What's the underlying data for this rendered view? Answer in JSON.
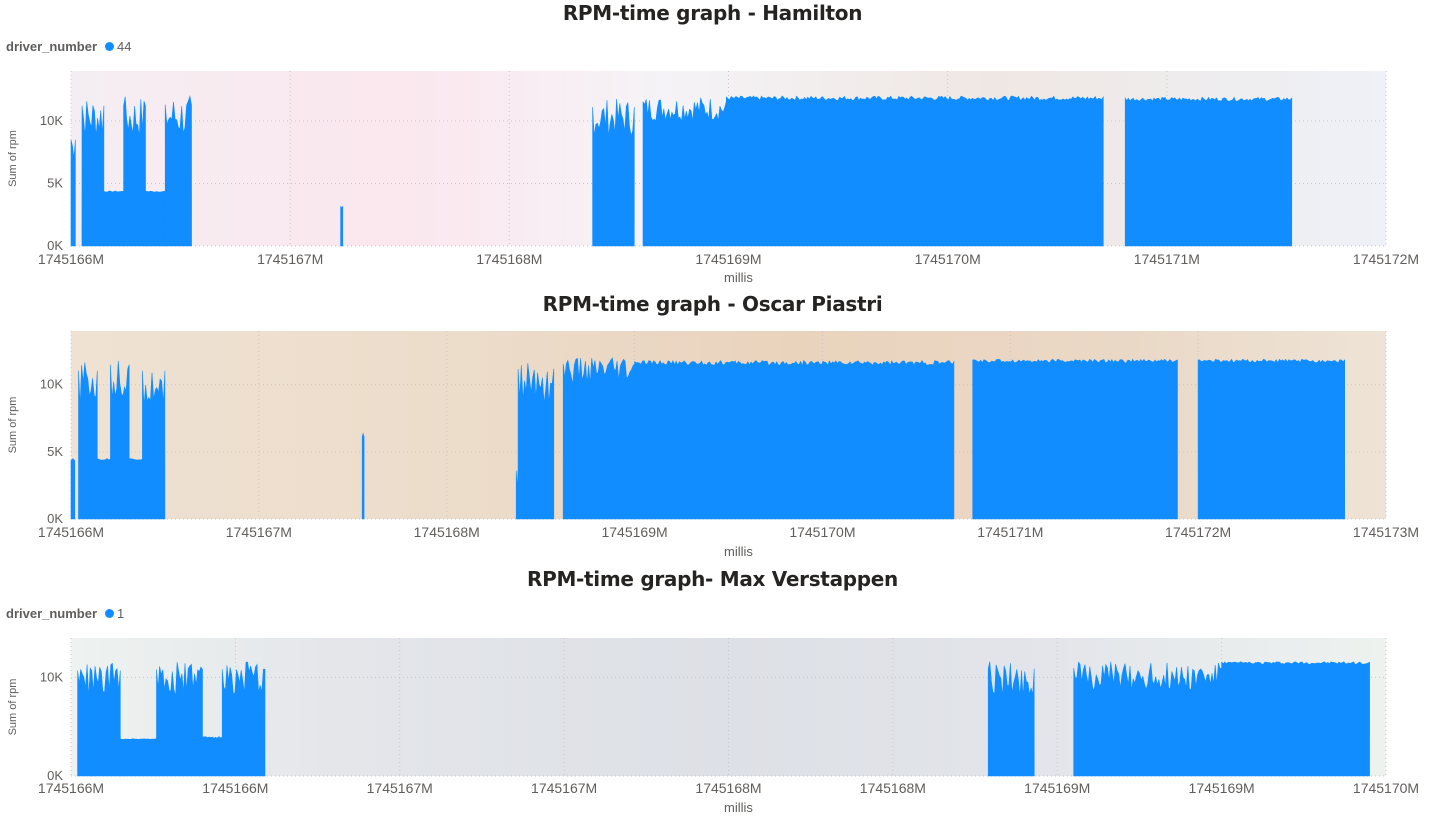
{
  "colors": {
    "series": "#118dff",
    "text": "#252423",
    "axis_text": "#605e5c",
    "grid": "#c8c6c4"
  },
  "charts": [
    {
      "title": "RPM-time graph - Hamilton",
      "legend": {
        "title": "driver_number",
        "items": [
          {
            "label": "44",
            "color": "#118dff"
          }
        ]
      },
      "background": "blurred photo of Hamilton (pink/red/white tones)",
      "xlabel": "millis",
      "ylabel": "Sum of rpm",
      "xticks": [
        "1745166M",
        "1745167M",
        "1745168M",
        "1745169M",
        "1745170M",
        "1745171M",
        "1745172M"
      ],
      "yticks": [
        "0K",
        "5K",
        "10K"
      ]
    },
    {
      "title": "RPM-time graph - Oscar Piastri",
      "legend": null,
      "background": "blurred photo of Oscar Piastri in orange McLaren suit",
      "xlabel": "millis",
      "ylabel": "Sum of rpm",
      "xticks": [
        "1745166M",
        "1745167M",
        "1745168M",
        "1745169M",
        "1745170M",
        "1745171M",
        "1745172M",
        "1745173M"
      ],
      "yticks": [
        "0K",
        "5K",
        "10K"
      ]
    },
    {
      "title": "RPM-time graph- Max Verstappen",
      "legend": {
        "title": "driver_number",
        "items": [
          {
            "label": "1",
            "color": "#118dff"
          }
        ]
      },
      "background": "blurred photo of Max Verstappen in Red Bull suit with TAG Heuer and Mobil 1 logos",
      "xlabel": "millis",
      "ylabel": "Sum of rpm",
      "xticks": [
        "1745166M",
        "1745166M",
        "1745167M",
        "1745167M",
        "1745168M",
        "1745168M",
        "1745169M",
        "1745169M",
        "1745170M"
      ],
      "yticks": [
        "0K",
        "10K"
      ]
    }
  ],
  "chart_data": [
    {
      "type": "area",
      "title": "RPM-time graph - Hamilton",
      "xlabel": "millis",
      "ylabel": "Sum of rpm",
      "xlim": [
        1745166,
        1745172
      ],
      "x_unit": "M",
      "ylim": [
        0,
        14000
      ],
      "grid": true,
      "legend_placement": "top-left",
      "series": [
        {
          "name": "44",
          "segments": [
            {
              "x_start": 1745166.0,
              "x_end": 1745166.02,
              "y_low": 4000,
              "y_high": 9000
            },
            {
              "x_start": 1745166.05,
              "x_end": 1745166.15,
              "y_low": 4200,
              "y_high": 12000
            },
            {
              "x_start": 1745166.15,
              "x_end": 1745166.24,
              "y_low": 4200,
              "y_high": 4400
            },
            {
              "x_start": 1745166.24,
              "x_end": 1745166.34,
              "y_low": 4200,
              "y_high": 12000
            },
            {
              "x_start": 1745166.34,
              "x_end": 1745166.43,
              "y_low": 4200,
              "y_high": 4400
            },
            {
              "x_start": 1745166.43,
              "x_end": 1745166.55,
              "y_low": 4200,
              "y_high": 12100
            },
            {
              "x_start": 1745167.23,
              "x_end": 1745167.24,
              "y_low": 0,
              "y_high": 3500
            },
            {
              "x_start": 1745168.38,
              "x_end": 1745168.57,
              "y_low": 5000,
              "y_high": 11800
            },
            {
              "x_start": 1745168.61,
              "x_end": 1745168.99,
              "y_low": 7500,
              "y_high": 12000
            },
            {
              "x_start": 1745168.99,
              "x_end": 1745170.71,
              "y_low": 11200,
              "y_high": 12000
            },
            {
              "x_start": 1745170.81,
              "x_end": 1745171.57,
              "y_low": 11200,
              "y_high": 11900
            }
          ]
        }
      ]
    },
    {
      "type": "area",
      "title": "RPM-time graph - Oscar Piastri",
      "xlabel": "millis",
      "ylabel": "Sum of rpm",
      "xlim": [
        1745166,
        1745173
      ],
      "x_unit": "M",
      "ylim": [
        0,
        14000
      ],
      "grid": true,
      "legend_placement": "none",
      "series": [
        {
          "name": "",
          "segments": [
            {
              "x_start": 1745166.0,
              "x_end": 1745166.02,
              "y_low": 3000,
              "y_high": 4500
            },
            {
              "x_start": 1745166.04,
              "x_end": 1745166.14,
              "y_low": 4200,
              "y_high": 11800
            },
            {
              "x_start": 1745166.14,
              "x_end": 1745166.21,
              "y_low": 4200,
              "y_high": 4500
            },
            {
              "x_start": 1745166.21,
              "x_end": 1745166.31,
              "y_low": 4200,
              "y_high": 12300
            },
            {
              "x_start": 1745166.31,
              "x_end": 1745166.38,
              "y_low": 4200,
              "y_high": 4500
            },
            {
              "x_start": 1745166.38,
              "x_end": 1745166.5,
              "y_low": 4200,
              "y_high": 11800
            },
            {
              "x_start": 1745167.55,
              "x_end": 1745167.56,
              "y_low": 0,
              "y_high": 6800
            },
            {
              "x_start": 1745168.37,
              "x_end": 1745168.38,
              "y_low": 0,
              "y_high": 4000
            },
            {
              "x_start": 1745168.38,
              "x_end": 1745168.57,
              "y_low": 3800,
              "y_high": 12000
            },
            {
              "x_start": 1745168.62,
              "x_end": 1745169.0,
              "y_low": 7500,
              "y_high": 12000
            },
            {
              "x_start": 1745169.0,
              "x_end": 1745170.7,
              "y_low": 11000,
              "y_high": 11800
            },
            {
              "x_start": 1745170.8,
              "x_end": 1745171.89,
              "y_low": 11300,
              "y_high": 11900
            },
            {
              "x_start": 1745172.0,
              "x_end": 1745172.78,
              "y_low": 11300,
              "y_high": 11900
            }
          ]
        }
      ]
    },
    {
      "type": "area",
      "title": "RPM-time graph- Max Verstappen",
      "xlabel": "millis",
      "ylabel": "Sum of rpm",
      "xlim": [
        1745166,
        1745170
      ],
      "x_unit": "M",
      "ylim": [
        0,
        14000
      ],
      "grid": true,
      "legend_placement": "top-left",
      "series": [
        {
          "name": "1",
          "segments": [
            {
              "x_start": 1745166.02,
              "x_end": 1745166.15,
              "y_low": 3500,
              "y_high": 11500
            },
            {
              "x_start": 1745166.15,
              "x_end": 1745166.26,
              "y_low": 3600,
              "y_high": 3800
            },
            {
              "x_start": 1745166.26,
              "x_end": 1745166.4,
              "y_low": 3600,
              "y_high": 11600
            },
            {
              "x_start": 1745166.4,
              "x_end": 1745166.46,
              "y_low": 3600,
              "y_high": 4000
            },
            {
              "x_start": 1745166.46,
              "x_end": 1745166.59,
              "y_low": 3800,
              "y_high": 11600
            },
            {
              "x_start": 1745168.79,
              "x_end": 1745168.93,
              "y_low": 3500,
              "y_high": 11700
            },
            {
              "x_start": 1745169.05,
              "x_end": 1745169.5,
              "y_low": 5000,
              "y_high": 11600
            },
            {
              "x_start": 1745169.5,
              "x_end": 1745169.95,
              "y_low": 11000,
              "y_high": 11600
            }
          ]
        }
      ]
    }
  ]
}
